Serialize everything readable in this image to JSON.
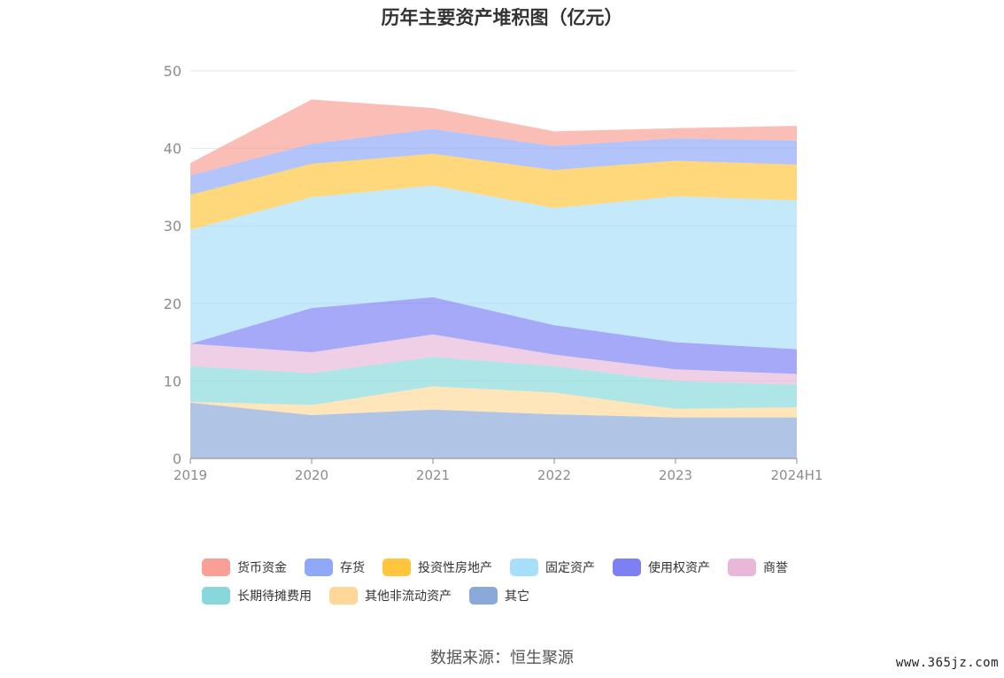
{
  "source_label": "数据来源：恒生聚源",
  "watermark": "www.365jz.com",
  "chart_data": {
    "type": "area",
    "stacked": true,
    "title": "历年主要资产堆积图（亿元）",
    "xlabel": "",
    "ylabel": "",
    "x": [
      "2019",
      "2020",
      "2021",
      "2022",
      "2023",
      "2024H1"
    ],
    "ylim": [
      0,
      50
    ],
    "yticks": [
      0,
      10,
      20,
      30,
      40,
      50
    ],
    "grid": true,
    "legend_position": "bottom",
    "series": [
      {
        "name": "其它",
        "color": "#8aa9d9",
        "values": [
          7.2,
          5.6,
          6.3,
          5.7,
          5.3,
          5.3
        ]
      },
      {
        "name": "其他非流动资产",
        "color": "#ffd899",
        "values": [
          0.1,
          1.3,
          3.0,
          2.8,
          1.1,
          1.3
        ]
      },
      {
        "name": "长期待摊费用",
        "color": "#88d8db",
        "values": [
          4.6,
          4.1,
          3.8,
          3.4,
          3.6,
          2.9
        ]
      },
      {
        "name": "商誉",
        "color": "#e8b8d9",
        "values": [
          2.9,
          2.7,
          2.9,
          1.5,
          1.5,
          1.4
        ]
      },
      {
        "name": "使用权资产",
        "color": "#7c80f3",
        "values": [
          0.0,
          5.7,
          4.8,
          3.8,
          3.5,
          3.2
        ]
      },
      {
        "name": "固定资产",
        "color": "#a8dff8",
        "values": [
          14.7,
          14.3,
          14.4,
          15.1,
          18.8,
          19.2
        ]
      },
      {
        "name": "投资性房地产",
        "color": "#ffc53d",
        "values": [
          4.5,
          4.3,
          4.1,
          4.9,
          4.6,
          4.6
        ]
      },
      {
        "name": "存货",
        "color": "#8fa8f8",
        "values": [
          2.5,
          2.6,
          3.2,
          3.1,
          2.9,
          3.1
        ]
      },
      {
        "name": "货币资金",
        "color": "#f99f95",
        "values": [
          1.6,
          5.7,
          2.7,
          1.9,
          1.3,
          1.9
        ]
      }
    ],
    "legend_order": [
      "货币资金",
      "存货",
      "投资性房地产",
      "固定资产",
      "使用权资产",
      "商誉",
      "长期待摊费用",
      "其他非流动资产",
      "其它"
    ]
  }
}
